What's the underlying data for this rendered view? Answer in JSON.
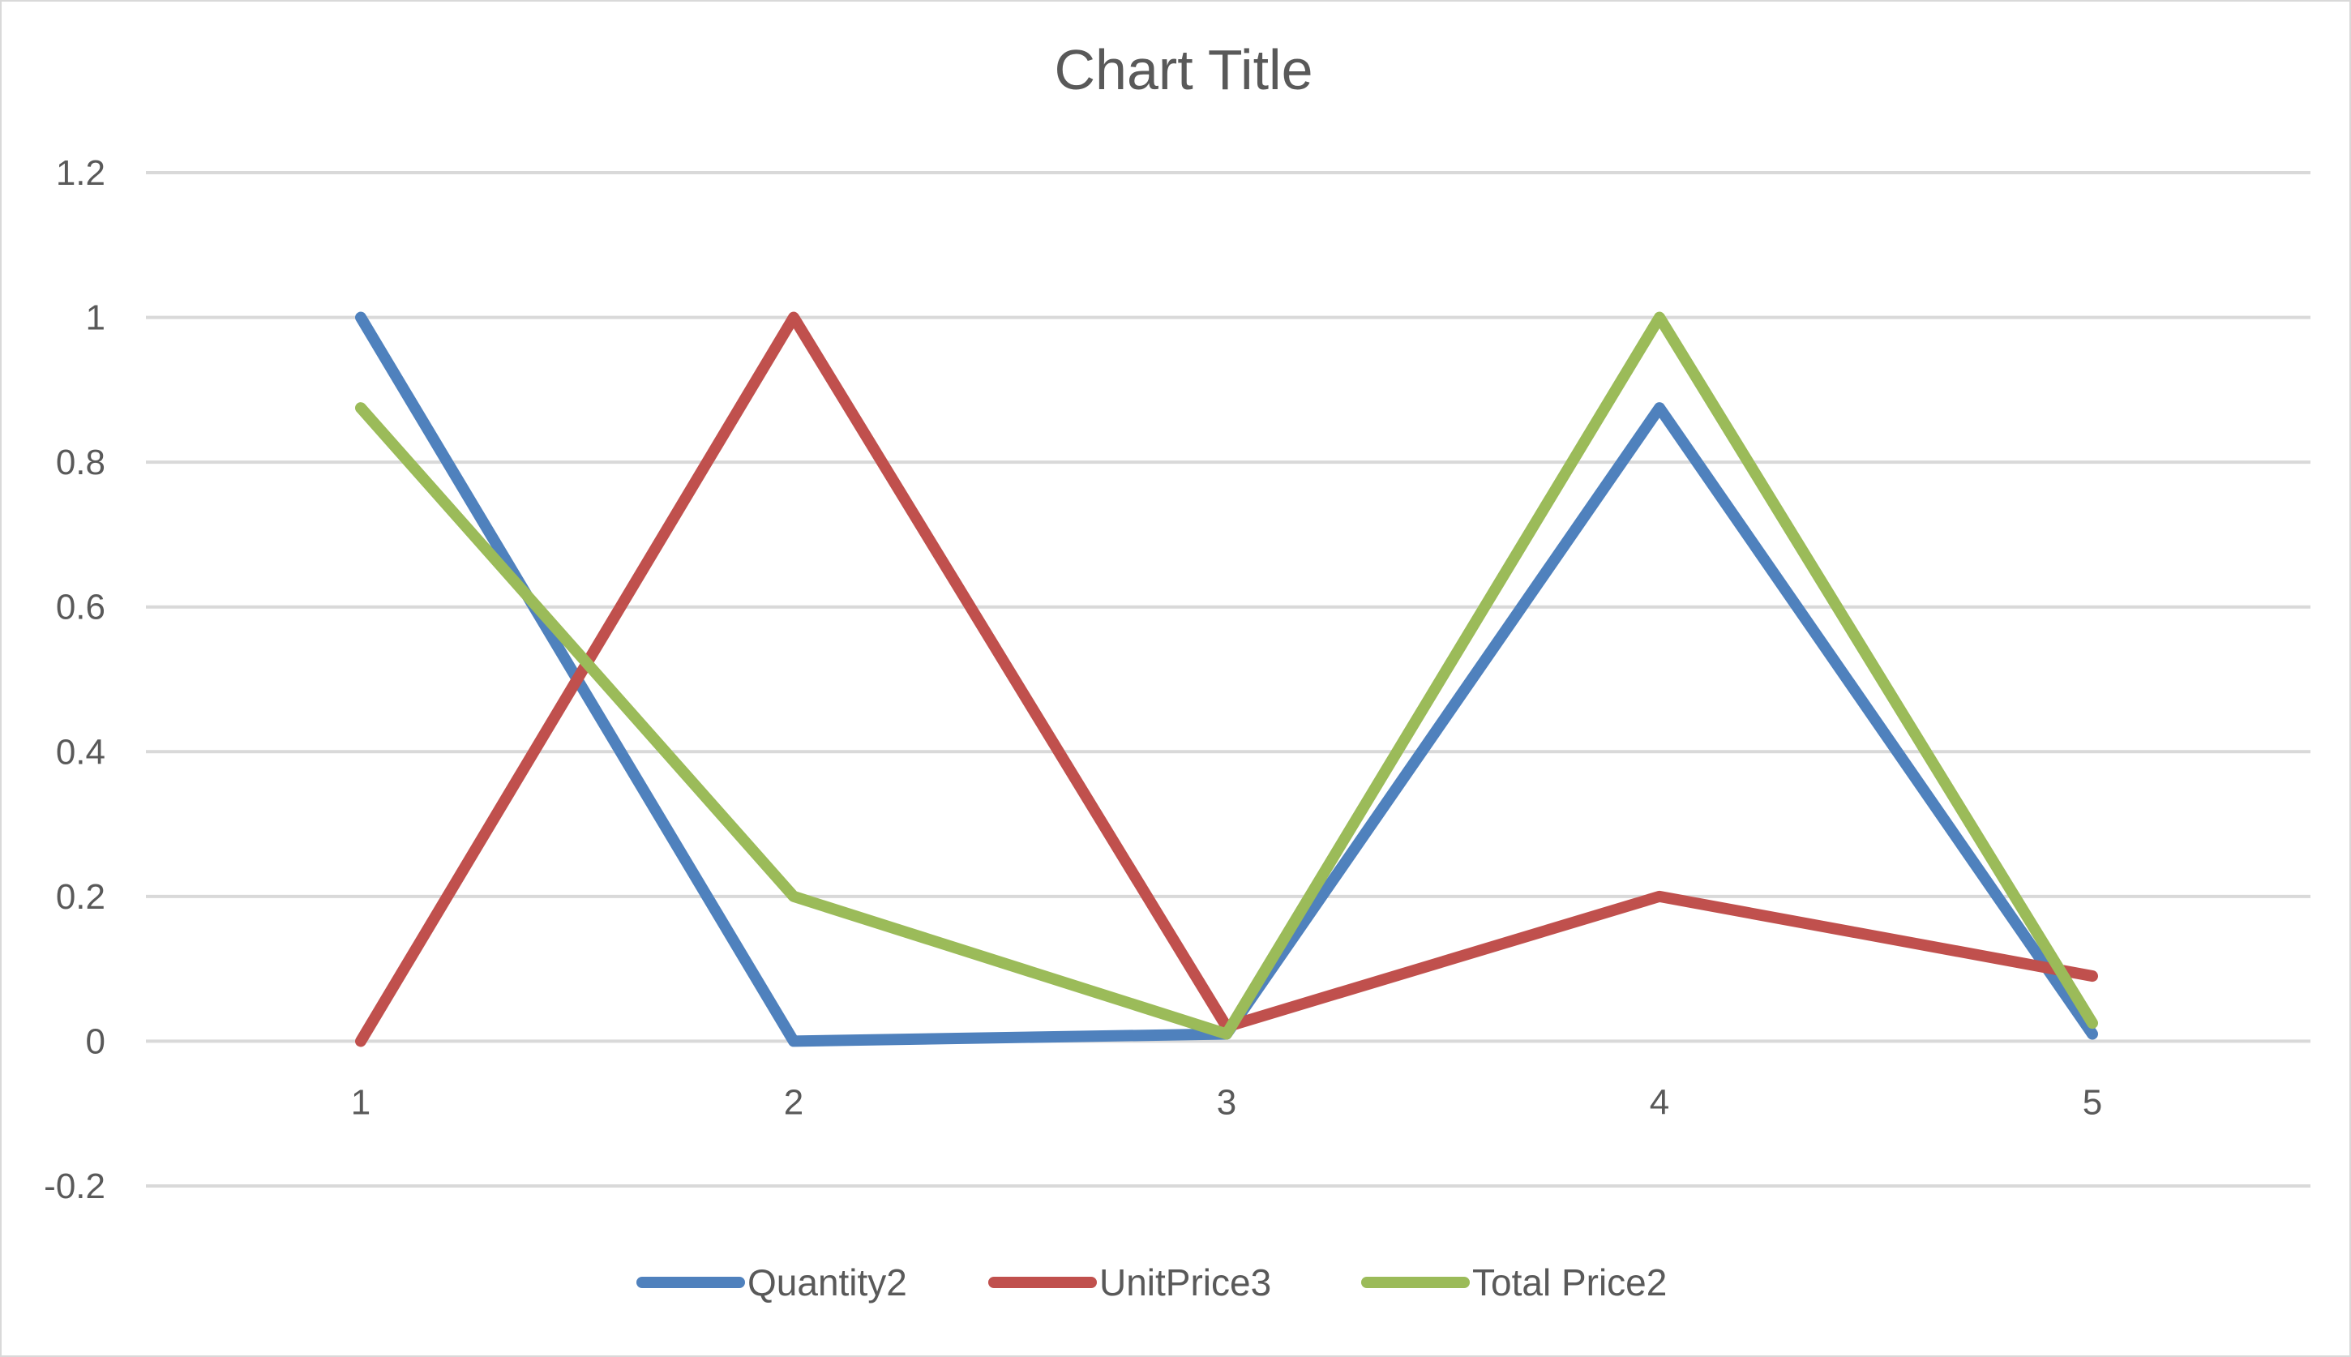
{
  "chart_data": {
    "type": "line",
    "title": "Chart Title",
    "xlabel": "",
    "ylabel": "",
    "categories": [
      "1",
      "2",
      "3",
      "4",
      "5"
    ],
    "ylim": [
      -0.2,
      1.2
    ],
    "yticks": [
      -0.2,
      0,
      0.2,
      0.4,
      0.6,
      0.8,
      1,
      1.2
    ],
    "ytick_labels": [
      "-0.2",
      "0",
      "0.2",
      "0.4",
      "0.6",
      "0.8",
      "1",
      "1.2"
    ],
    "grid": true,
    "legend_position": "bottom",
    "series": [
      {
        "name": "Quantity2",
        "color": "#4f81bd",
        "values": [
          1,
          0,
          0.01,
          0.875,
          0.01
        ]
      },
      {
        "name": "UnitPrice3",
        "color": "#c0504d",
        "values": [
          0,
          1,
          0.02,
          0.2,
          0.09
        ]
      },
      {
        "name": "Total Price2",
        "color": "#9bbb59",
        "values": [
          0.875,
          0.2,
          0.01,
          1,
          0.025
        ]
      }
    ]
  }
}
